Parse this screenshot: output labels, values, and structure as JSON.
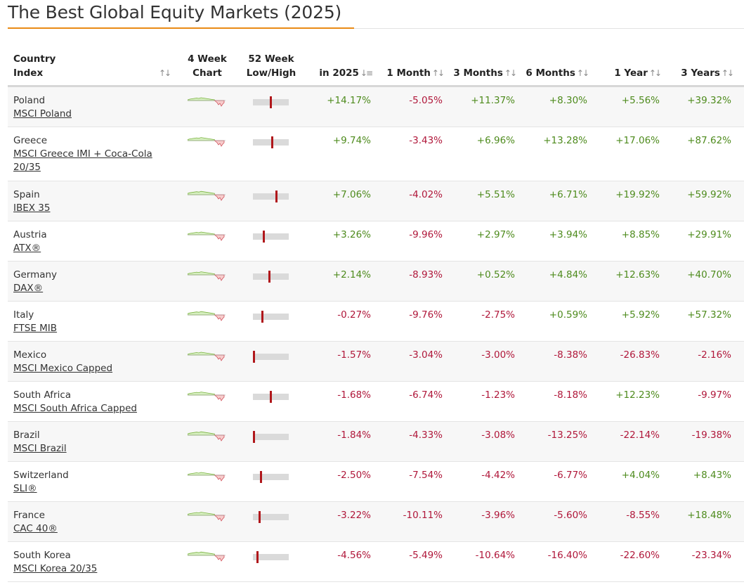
{
  "page": {
    "title": "The Best Global Equity Markets (2025)"
  },
  "header": {
    "country_line1": "Country",
    "country_line2": "Index",
    "chart_line1": "4 Week",
    "chart_line2": "Chart",
    "lowhigh_line1": "52 Week",
    "lowhigh_line2": "Low/High",
    "col_2025": "in 2025",
    "col_1m": "1 Month",
    "col_3m": "3 Months",
    "col_6m": "6 Months",
    "col_1y": "1 Year",
    "col_3y": "3 Years",
    "sort_icon_active": "↓≡",
    "sort_icon": "↑↓"
  },
  "colors": {
    "positive": "#4e8b1d",
    "negative": "#b0173a",
    "accent": "#e98a15",
    "marker": "#b0171b"
  },
  "rows": [
    {
      "country": "Poland",
      "index": "MSCI Poland",
      "lowhigh": 0.5,
      "ytd": "+14.17%",
      "m1": "-5.05%",
      "m3": "+11.37%",
      "m6": "+8.30%",
      "y1": "+5.56%",
      "y3": "+39.32%"
    },
    {
      "country": "Greece",
      "index": "MSCI Greece IMI + Coca-Cola 20/35",
      "lowhigh": 0.54,
      "ytd": "+9.74%",
      "m1": "-3.43%",
      "m3": "+6.96%",
      "m6": "+13.28%",
      "y1": "+17.06%",
      "y3": "+87.62%"
    },
    {
      "country": "Spain",
      "index": "IBEX 35",
      "lowhigh": 0.66,
      "ytd": "+7.06%",
      "m1": "-4.02%",
      "m3": "+5.51%",
      "m6": "+6.71%",
      "y1": "+19.92%",
      "y3": "+59.92%"
    },
    {
      "country": "Austria",
      "index": "ATX®",
      "lowhigh": 0.3,
      "ytd": "+3.26%",
      "m1": "-9.96%",
      "m3": "+2.97%",
      "m6": "+3.94%",
      "y1": "+8.85%",
      "y3": "+29.91%"
    },
    {
      "country": "Germany",
      "index": "DAX®",
      "lowhigh": 0.46,
      "ytd": "+2.14%",
      "m1": "-8.93%",
      "m3": "+0.52%",
      "m6": "+4.84%",
      "y1": "+12.63%",
      "y3": "+40.70%"
    },
    {
      "country": "Italy",
      "index": "FTSE MIB",
      "lowhigh": 0.26,
      "ytd": "-0.27%",
      "m1": "-9.76%",
      "m3": "-2.75%",
      "m6": "+0.59%",
      "y1": "+5.92%",
      "y3": "+57.32%"
    },
    {
      "country": "Mexico",
      "index": "MSCI Mexico Capped",
      "lowhigh": 0.0,
      "ytd": "-1.57%",
      "m1": "-3.04%",
      "m3": "-3.00%",
      "m6": "-8.38%",
      "y1": "-26.83%",
      "y3": "-2.16%"
    },
    {
      "country": "South Africa",
      "index": "MSCI South Africa Capped",
      "lowhigh": 0.5,
      "ytd": "-1.68%",
      "m1": "-6.74%",
      "m3": "-1.23%",
      "m6": "-8.18%",
      "y1": "+12.23%",
      "y3": "-9.97%"
    },
    {
      "country": "Brazil",
      "index": "MSCI Brazil",
      "lowhigh": 0.0,
      "ytd": "-1.84%",
      "m1": "-4.33%",
      "m3": "-3.08%",
      "m6": "-13.25%",
      "y1": "-22.14%",
      "y3": "-19.38%"
    },
    {
      "country": "Switzerland",
      "index": "SLI®",
      "lowhigh": 0.2,
      "ytd": "-2.50%",
      "m1": "-7.54%",
      "m3": "-4.42%",
      "m6": "-6.77%",
      "y1": "+4.04%",
      "y3": "+8.43%"
    },
    {
      "country": "France",
      "index": "CAC 40®",
      "lowhigh": 0.16,
      "ytd": "-3.22%",
      "m1": "-10.11%",
      "m3": "-3.96%",
      "m6": "-5.60%",
      "y1": "-8.55%",
      "y3": "+18.48%"
    },
    {
      "country": "South Korea",
      "index": "MSCI Korea 20/35",
      "lowhigh": 0.1,
      "ytd": "-4.56%",
      "m1": "-5.49%",
      "m3": "-10.64%",
      "m6": "-16.40%",
      "y1": "-22.60%",
      "y3": "-23.34%"
    }
  ]
}
